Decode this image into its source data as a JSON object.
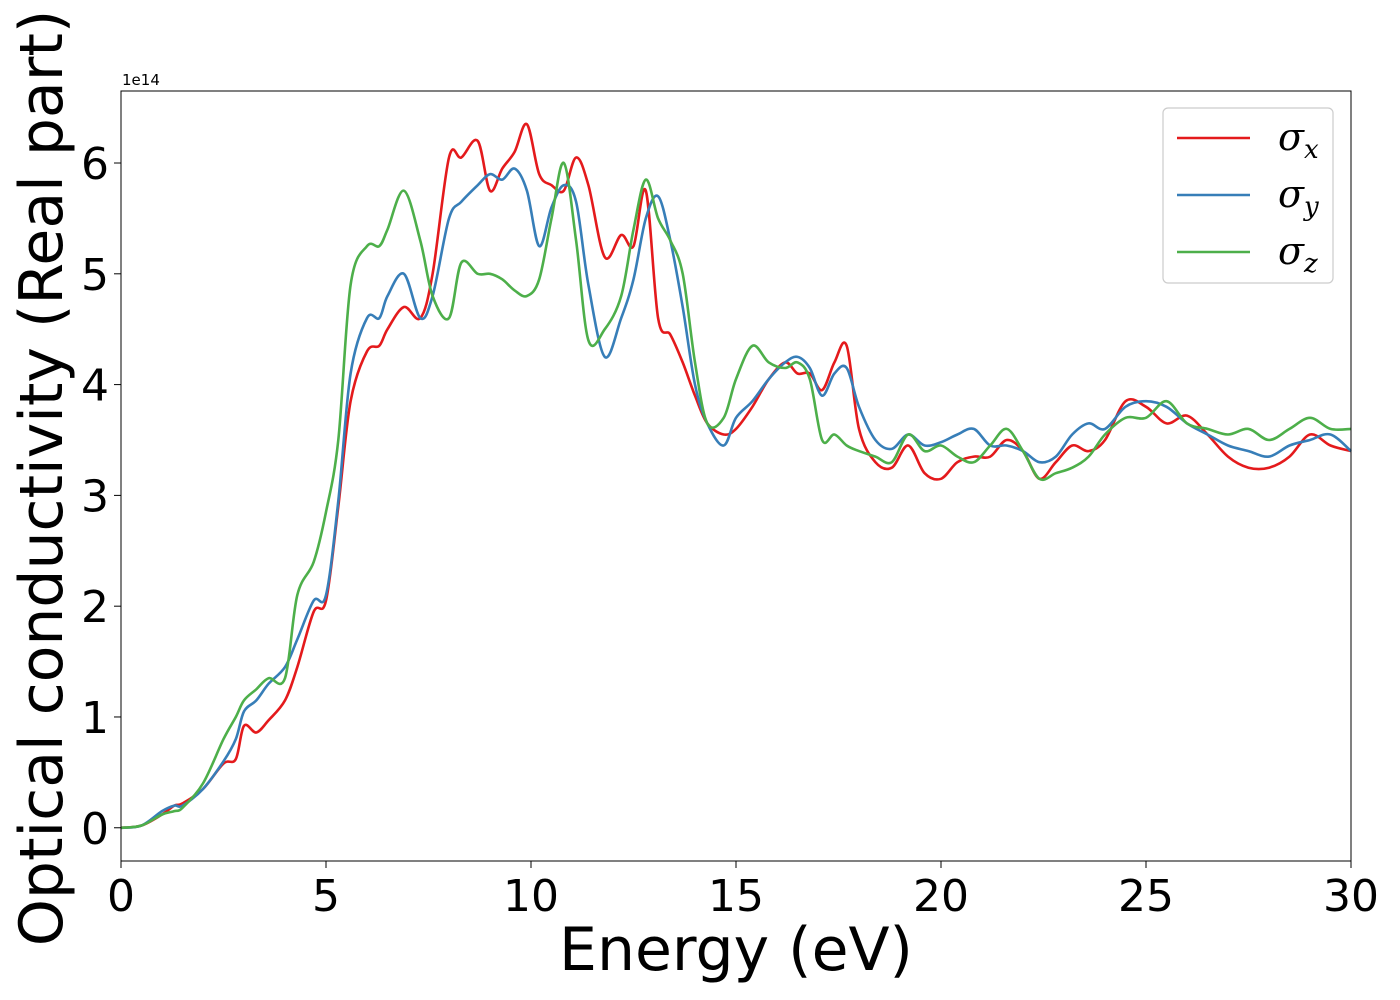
{
  "chart_data": {
    "type": "line",
    "xlabel": "Energy (eV)",
    "ylabel": "Optical conductivity (Real part)",
    "y_offset_text": "1e14",
    "xlim": [
      0,
      30
    ],
    "ylim": [
      -0.3,
      6.65
    ],
    "x_ticks": [
      0,
      5,
      10,
      15,
      20,
      25,
      30
    ],
    "x_tick_labels": [
      "0",
      "5",
      "10",
      "15",
      "20",
      "25",
      "30"
    ],
    "y_ticks": [
      0,
      1,
      2,
      3,
      4,
      5,
      6
    ],
    "y_tick_labels": [
      "0",
      "1",
      "2",
      "3",
      "4",
      "5",
      "6"
    ],
    "grid": false,
    "legend_position": "top-right",
    "x": [
      0,
      0.5,
      1,
      1.3,
      1.5,
      2,
      2.5,
      2.8,
      3,
      3.3,
      3.6,
      4,
      4.3,
      4.7,
      5,
      5.3,
      5.6,
      6,
      6.3,
      6.5,
      6.9,
      7.3,
      7.6,
      8,
      8.3,
      8.7,
      9,
      9.3,
      9.6,
      9.9,
      10.2,
      10.5,
      10.8,
      11.1,
      11.4,
      11.8,
      12.2,
      12.5,
      12.8,
      13.1,
      13.4,
      13.7,
      14,
      14.3,
      14.7,
      15,
      15.4,
      15.8,
      16.2,
      16.5,
      16.8,
      17.1,
      17.4,
      17.7,
      18,
      18.4,
      18.8,
      19.2,
      19.6,
      20,
      20.4,
      20.8,
      21.2,
      21.6,
      22,
      22.4,
      22.8,
      23.2,
      23.6,
      24,
      24.5,
      25,
      25.5,
      26,
      26.5,
      27,
      27.5,
      28,
      28.5,
      29,
      29.5,
      30
    ],
    "series": [
      {
        "name": "x",
        "color": "#e41a1c",
        "values": [
          0,
          0.02,
          0.12,
          0.2,
          0.22,
          0.35,
          0.58,
          0.62,
          0.92,
          0.86,
          0.97,
          1.15,
          1.45,
          1.95,
          2.05,
          2.9,
          3.85,
          4.3,
          4.35,
          4.5,
          4.7,
          4.6,
          5.0,
          6.05,
          6.05,
          6.2,
          5.75,
          5.95,
          6.1,
          6.35,
          5.9,
          5.8,
          5.75,
          6.05,
          5.8,
          5.15,
          5.35,
          5.25,
          5.75,
          4.6,
          4.45,
          4.2,
          3.9,
          3.65,
          3.55,
          3.6,
          3.8,
          4.05,
          4.2,
          4.1,
          4.1,
          3.95,
          4.2,
          4.35,
          3.6,
          3.3,
          3.25,
          3.45,
          3.2,
          3.15,
          3.3,
          3.35,
          3.35,
          3.5,
          3.4,
          3.15,
          3.3,
          3.45,
          3.4,
          3.5,
          3.85,
          3.8,
          3.65,
          3.72,
          3.55,
          3.35,
          3.25,
          3.25,
          3.35,
          3.55,
          3.45,
          3.4
        ]
      },
      {
        "name": "y",
        "color": "#377eb8",
        "values": [
          0,
          0.02,
          0.15,
          0.2,
          0.2,
          0.35,
          0.6,
          0.8,
          1.05,
          1.15,
          1.3,
          1.45,
          1.7,
          2.05,
          2.1,
          2.95,
          4.1,
          4.6,
          4.6,
          4.8,
          5.0,
          4.6,
          4.8,
          5.5,
          5.65,
          5.8,
          5.9,
          5.85,
          5.95,
          5.75,
          5.25,
          5.6,
          5.8,
          5.65,
          4.9,
          4.25,
          4.6,
          4.95,
          5.5,
          5.7,
          5.3,
          4.7,
          4.0,
          3.65,
          3.45,
          3.7,
          3.85,
          4.05,
          4.2,
          4.25,
          4.15,
          3.9,
          4.1,
          4.15,
          3.8,
          3.5,
          3.42,
          3.55,
          3.45,
          3.48,
          3.55,
          3.6,
          3.45,
          3.45,
          3.4,
          3.3,
          3.35,
          3.55,
          3.65,
          3.6,
          3.8,
          3.85,
          3.8,
          3.65,
          3.55,
          3.45,
          3.4,
          3.35,
          3.45,
          3.5,
          3.55,
          3.4
        ]
      },
      {
        "name": "z",
        "color": "#4daf4a",
        "values": [
          0,
          0.02,
          0.12,
          0.15,
          0.18,
          0.4,
          0.8,
          1.0,
          1.15,
          1.25,
          1.35,
          1.35,
          2.1,
          2.4,
          2.85,
          3.5,
          4.9,
          5.25,
          5.25,
          5.4,
          5.75,
          5.3,
          4.8,
          4.6,
          5.1,
          5.0,
          5.0,
          4.95,
          4.85,
          4.8,
          4.95,
          5.5,
          6.0,
          5.3,
          4.4,
          4.5,
          4.8,
          5.4,
          5.85,
          5.5,
          5.3,
          5.0,
          4.2,
          3.65,
          3.7,
          4.05,
          4.35,
          4.2,
          4.15,
          4.2,
          4.05,
          3.5,
          3.55,
          3.45,
          3.4,
          3.35,
          3.3,
          3.55,
          3.4,
          3.45,
          3.35,
          3.3,
          3.45,
          3.6,
          3.4,
          3.15,
          3.2,
          3.25,
          3.35,
          3.55,
          3.7,
          3.7,
          3.85,
          3.65,
          3.6,
          3.55,
          3.6,
          3.5,
          3.6,
          3.7,
          3.6,
          3.6
        ]
      }
    ]
  }
}
